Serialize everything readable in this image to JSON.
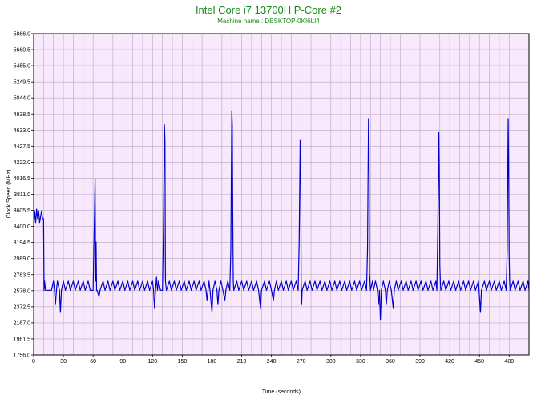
{
  "chart_data": {
    "type": "line",
    "title": "Intel Core i7 13700H P-Core #2",
    "subtitle": "Machine name : DESKTOP-0KI6LI4",
    "xlabel": "Time (seconds)",
    "ylabel": "Clock Speed (MHz)",
    "xlim": [
      0,
      500
    ],
    "ylim": [
      1756.0,
      5866.0
    ],
    "x_ticks": [
      0,
      30,
      60,
      90,
      120,
      150,
      180,
      210,
      240,
      270,
      300,
      330,
      360,
      390,
      420,
      450,
      480
    ],
    "y_ticks": [
      "5866.0",
      "5660.5",
      "5455.0",
      "5249.5",
      "5044.0",
      "4838.5",
      "4633.0",
      "4427.5",
      "4222.0",
      "4016.5",
      "3811.0",
      "3605.5",
      "3400.0",
      "3194.5",
      "2989.0",
      "2783.5",
      "2578.0",
      "2372.5",
      "2167.0",
      "1961.5",
      "1756.0"
    ],
    "grid": true,
    "legend": "none",
    "colors": {
      "line": "#0000cc",
      "plot_bg": "#f7e8fb",
      "grid": "#b9a6c3",
      "title": "#1a8a1a"
    },
    "series": [
      {
        "values": [
          [
            0,
            3400
          ],
          [
            1,
            3600
          ],
          [
            2,
            3450
          ],
          [
            3,
            3620
          ],
          [
            4,
            3500
          ],
          [
            5,
            3600
          ],
          [
            6,
            3450
          ],
          [
            8,
            3600
          ],
          [
            9,
            3500
          ],
          [
            10,
            3500
          ],
          [
            10.5,
            2583
          ],
          [
            11,
            2700
          ],
          [
            12,
            2583
          ],
          [
            14,
            2583
          ],
          [
            18,
            2583
          ],
          [
            20,
            2700
          ],
          [
            21,
            2583
          ],
          [
            22,
            2400
          ],
          [
            23,
            2583
          ],
          [
            24,
            2700
          ],
          [
            26,
            2583
          ],
          [
            27,
            2300
          ],
          [
            28,
            2583
          ],
          [
            30,
            2700
          ],
          [
            32,
            2583
          ],
          [
            35,
            2700
          ],
          [
            37,
            2583
          ],
          [
            40,
            2700
          ],
          [
            42,
            2583
          ],
          [
            45,
            2700
          ],
          [
            47,
            2583
          ],
          [
            50,
            2700
          ],
          [
            52,
            2583
          ],
          [
            55,
            2700
          ],
          [
            57,
            2583
          ],
          [
            60,
            2583
          ],
          [
            62,
            4000
          ],
          [
            62.5,
            2700
          ],
          [
            63,
            3200
          ],
          [
            63.5,
            2583
          ],
          [
            64,
            2583
          ],
          [
            66,
            2500
          ],
          [
            67,
            2583
          ],
          [
            70,
            2700
          ],
          [
            72,
            2583
          ],
          [
            75,
            2700
          ],
          [
            77,
            2583
          ],
          [
            80,
            2700
          ],
          [
            82,
            2583
          ],
          [
            85,
            2700
          ],
          [
            87,
            2583
          ],
          [
            90,
            2700
          ],
          [
            92,
            2583
          ],
          [
            95,
            2700
          ],
          [
            97,
            2583
          ],
          [
            100,
            2700
          ],
          [
            102,
            2583
          ],
          [
            105,
            2700
          ],
          [
            107,
            2583
          ],
          [
            110,
            2700
          ],
          [
            112,
            2583
          ],
          [
            115,
            2700
          ],
          [
            117,
            2583
          ],
          [
            120,
            2700
          ],
          [
            121,
            2583
          ],
          [
            122,
            2350
          ],
          [
            123,
            2583
          ],
          [
            124,
            2750
          ],
          [
            125,
            2583
          ],
          [
            126,
            2700
          ],
          [
            128,
            2583
          ],
          [
            130,
            2583
          ],
          [
            131,
            3400
          ],
          [
            132,
            4700
          ],
          [
            132.5,
            4500
          ],
          [
            133,
            2700
          ],
          [
            134,
            2583
          ],
          [
            137,
            2700
          ],
          [
            139,
            2583
          ],
          [
            142,
            2700
          ],
          [
            144,
            2583
          ],
          [
            147,
            2700
          ],
          [
            149,
            2583
          ],
          [
            152,
            2700
          ],
          [
            154,
            2583
          ],
          [
            157,
            2700
          ],
          [
            159,
            2583
          ],
          [
            162,
            2700
          ],
          [
            164,
            2583
          ],
          [
            167,
            2700
          ],
          [
            169,
            2583
          ],
          [
            172,
            2700
          ],
          [
            174,
            2583
          ],
          [
            175,
            2450
          ],
          [
            176,
            2583
          ],
          [
            177,
            2700
          ],
          [
            178,
            2583
          ],
          [
            180,
            2300
          ],
          [
            181,
            2583
          ],
          [
            183,
            2700
          ],
          [
            185,
            2583
          ],
          [
            186,
            2400
          ],
          [
            187,
            2583
          ],
          [
            189,
            2700
          ],
          [
            191,
            2583
          ],
          [
            193,
            2450
          ],
          [
            194,
            2583
          ],
          [
            196,
            2700
          ],
          [
            198,
            2583
          ],
          [
            199,
            3100
          ],
          [
            200,
            4880
          ],
          [
            200.5,
            4700
          ],
          [
            201,
            3500
          ],
          [
            201.5,
            2700
          ],
          [
            202,
            2583
          ],
          [
            205,
            2700
          ],
          [
            207,
            2583
          ],
          [
            210,
            2700
          ],
          [
            212,
            2583
          ],
          [
            215,
            2700
          ],
          [
            217,
            2583
          ],
          [
            220,
            2700
          ],
          [
            222,
            2583
          ],
          [
            225,
            2700
          ],
          [
            227,
            2583
          ],
          [
            229,
            2350
          ],
          [
            230,
            2583
          ],
          [
            233,
            2700
          ],
          [
            235,
            2583
          ],
          [
            238,
            2700
          ],
          [
            240,
            2583
          ],
          [
            242,
            2450
          ],
          [
            243,
            2583
          ],
          [
            245,
            2700
          ],
          [
            247,
            2583
          ],
          [
            250,
            2700
          ],
          [
            252,
            2583
          ],
          [
            255,
            2700
          ],
          [
            257,
            2583
          ],
          [
            260,
            2700
          ],
          [
            262,
            2583
          ],
          [
            265,
            2700
          ],
          [
            267,
            2583
          ],
          [
            268,
            3200
          ],
          [
            269,
            4500
          ],
          [
            269.5,
            4300
          ],
          [
            270,
            2700
          ],
          [
            270.5,
            2400
          ],
          [
            271,
            2583
          ],
          [
            274,
            2700
          ],
          [
            276,
            2583
          ],
          [
            279,
            2700
          ],
          [
            281,
            2583
          ],
          [
            284,
            2700
          ],
          [
            286,
            2583
          ],
          [
            289,
            2700
          ],
          [
            291,
            2583
          ],
          [
            294,
            2700
          ],
          [
            296,
            2583
          ],
          [
            299,
            2700
          ],
          [
            301,
            2583
          ],
          [
            304,
            2700
          ],
          [
            306,
            2583
          ],
          [
            309,
            2700
          ],
          [
            311,
            2583
          ],
          [
            314,
            2700
          ],
          [
            316,
            2583
          ],
          [
            319,
            2700
          ],
          [
            321,
            2583
          ],
          [
            324,
            2700
          ],
          [
            326,
            2583
          ],
          [
            329,
            2700
          ],
          [
            331,
            2583
          ],
          [
            334,
            2700
          ],
          [
            336,
            2583
          ],
          [
            337,
            3100
          ],
          [
            338,
            4780
          ],
          [
            338.5,
            4600
          ],
          [
            339,
            2800
          ],
          [
            339.5,
            2700
          ],
          [
            340,
            2583
          ],
          [
            342,
            2700
          ],
          [
            343,
            2583
          ],
          [
            345,
            2700
          ],
          [
            347,
            2583
          ],
          [
            348,
            2400
          ],
          [
            349,
            2583
          ],
          [
            350,
            2200
          ],
          [
            351,
            2583
          ],
          [
            353,
            2700
          ],
          [
            355,
            2583
          ],
          [
            356,
            2400
          ],
          [
            357,
            2583
          ],
          [
            359,
            2700
          ],
          [
            361,
            2583
          ],
          [
            363,
            2350
          ],
          [
            364,
            2583
          ],
          [
            366,
            2700
          ],
          [
            368,
            2583
          ],
          [
            371,
            2700
          ],
          [
            373,
            2583
          ],
          [
            376,
            2700
          ],
          [
            378,
            2583
          ],
          [
            381,
            2700
          ],
          [
            383,
            2583
          ],
          [
            386,
            2700
          ],
          [
            388,
            2583
          ],
          [
            391,
            2700
          ],
          [
            393,
            2583
          ],
          [
            396,
            2700
          ],
          [
            398,
            2583
          ],
          [
            401,
            2700
          ],
          [
            403,
            2583
          ],
          [
            406,
            2700
          ],
          [
            407,
            2583
          ],
          [
            408,
            3400
          ],
          [
            409,
            4600
          ],
          [
            409.5,
            4000
          ],
          [
            410,
            2900
          ],
          [
            410.5,
            2700
          ],
          [
            411,
            2583
          ],
          [
            414,
            2700
          ],
          [
            416,
            2583
          ],
          [
            419,
            2700
          ],
          [
            421,
            2583
          ],
          [
            424,
            2700
          ],
          [
            426,
            2583
          ],
          [
            429,
            2700
          ],
          [
            431,
            2583
          ],
          [
            434,
            2700
          ],
          [
            436,
            2583
          ],
          [
            439,
            2700
          ],
          [
            441,
            2583
          ],
          [
            444,
            2700
          ],
          [
            446,
            2583
          ],
          [
            449,
            2700
          ],
          [
            451,
            2300
          ],
          [
            452,
            2583
          ],
          [
            455,
            2700
          ],
          [
            457,
            2583
          ],
          [
            460,
            2700
          ],
          [
            462,
            2583
          ],
          [
            465,
            2700
          ],
          [
            467,
            2583
          ],
          [
            470,
            2700
          ],
          [
            472,
            2583
          ],
          [
            475,
            2700
          ],
          [
            477,
            2583
          ],
          [
            478,
            3100
          ],
          [
            479,
            4780
          ],
          [
            479.5,
            4200
          ],
          [
            480,
            3000
          ],
          [
            480.5,
            2700
          ],
          [
            481,
            2583
          ],
          [
            484,
            2700
          ],
          [
            486,
            2583
          ],
          [
            489,
            2700
          ],
          [
            491,
            2583
          ],
          [
            494,
            2700
          ],
          [
            496,
            2583
          ],
          [
            499,
            2700
          ],
          [
            500,
            2583
          ]
        ]
      }
    ]
  }
}
